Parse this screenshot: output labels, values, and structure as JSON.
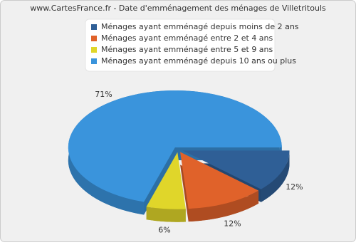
{
  "chart_data": {
    "type": "pie3d",
    "title": "www.CartesFrance.fr - Date d'emménagement des ménages de Villetritouls",
    "categories": [
      "Ménages ayant emménagé depuis moins de 2 ans",
      "Ménages ayant emménagé entre 2 et 4 ans",
      "Ménages ayant emménagé entre 5 et 9 ans",
      "Ménages ayant emménagé depuis 10 ans ou plus"
    ],
    "values": [
      12,
      12,
      6,
      71
    ],
    "value_labels": [
      "12%",
      "12%",
      "6%",
      "71%"
    ],
    "colors": [
      "#2f5f96",
      "#e0622a",
      "#e0d62a",
      "#3a94dc"
    ],
    "legend": "top"
  }
}
